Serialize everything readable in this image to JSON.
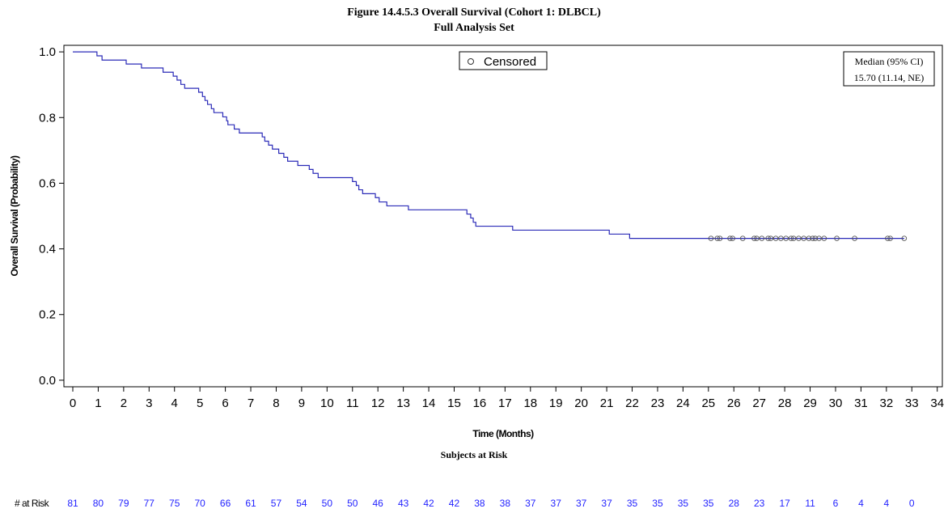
{
  "title": {
    "line1": "Figure 14.4.5.3  Overall Survival (Cohort 1: DLBCL)",
    "line2": "Full Analysis Set"
  },
  "legend": {
    "censored_label": "Censored"
  },
  "median_box": {
    "header": "Median (95% CI)",
    "value": "15.70 (11.14, NE)"
  },
  "colors": {
    "series": "#2b2bb8",
    "risk_values": "#2222ff",
    "axis": "#000000"
  },
  "risk_table": {
    "header": "Subjects at Risk",
    "row_label": "# at Risk",
    "times": [
      0,
      1,
      2,
      3,
      4,
      5,
      6,
      7,
      8,
      9,
      10,
      11,
      12,
      13,
      14,
      15,
      16,
      17,
      18,
      19,
      20,
      21,
      22,
      23,
      24,
      25,
      26,
      27,
      28,
      29,
      30,
      31,
      32,
      33
    ],
    "values": [
      81,
      80,
      79,
      77,
      75,
      70,
      66,
      61,
      57,
      54,
      50,
      50,
      46,
      43,
      42,
      42,
      38,
      38,
      37,
      37,
      37,
      37,
      35,
      35,
      35,
      35,
      28,
      23,
      17,
      11,
      6,
      4,
      4,
      0
    ]
  },
  "chart_data": {
    "type": "line",
    "subtype": "kaplan-meier-step",
    "xlabel": "Time (Months)",
    "ylabel": "Overall Survival (Probability)",
    "xlim": [
      -0.35,
      34.2
    ],
    "ylim": [
      -0.02,
      1.02
    ],
    "xticks": [
      0,
      1,
      2,
      3,
      4,
      5,
      6,
      7,
      8,
      9,
      10,
      11,
      12,
      13,
      14,
      15,
      16,
      17,
      18,
      19,
      20,
      21,
      22,
      23,
      24,
      25,
      26,
      27,
      28,
      29,
      30,
      31,
      32,
      33,
      34
    ],
    "yticks": [
      0.0,
      0.2,
      0.4,
      0.6,
      0.8,
      1.0
    ],
    "ytick_labels": [
      "0.0",
      "0.2",
      "0.4",
      "0.6",
      "0.8",
      "1.0"
    ],
    "grid": false,
    "legend_position": "top-center",
    "series": [
      {
        "x": [
          0,
          0.95,
          1.1,
          1.15,
          2.1,
          2.7,
          3.55,
          3.95,
          4.1,
          4.25,
          4.4,
          4.95,
          5.1,
          5.2,
          5.3,
          5.45,
          5.55,
          5.9,
          6.05,
          6.1,
          6.35,
          6.55,
          7.45,
          7.55,
          7.7,
          7.85,
          8.1,
          8.3,
          8.45,
          8.85,
          9.3,
          9.45,
          9.65,
          10.15,
          10.2,
          10.45,
          10.7,
          11,
          11.15,
          11.25,
          11.4,
          11.5,
          11.9,
          12.05,
          12.1,
          12.35,
          12.6,
          13.2,
          13.35,
          15.5,
          15.65,
          15.75,
          15.85,
          16.05,
          17.3,
          21.1,
          21.9,
          22,
          32.7
        ],
        "y": [
          1.0,
          0.988,
          0.988,
          0.975,
          0.963,
          0.951,
          0.938,
          0.926,
          0.914,
          0.901,
          0.889,
          0.877,
          0.864,
          0.852,
          0.84,
          0.827,
          0.815,
          0.802,
          0.79,
          0.778,
          0.765,
          0.753,
          0.741,
          0.728,
          0.716,
          0.704,
          0.691,
          0.679,
          0.667,
          0.654,
          0.642,
          0.63,
          0.617,
          0.617,
          0.617,
          0.617,
          0.617,
          0.605,
          0.593,
          0.58,
          0.568,
          0.568,
          0.556,
          0.543,
          0.543,
          0.531,
          0.531,
          0.519,
          0.519,
          0.506,
          0.494,
          0.481,
          0.469,
          0.469,
          0.457,
          0.445,
          0.432,
          0.432,
          0.432
        ]
      }
    ],
    "censored": {
      "x": [
        25.1,
        25.35,
        25.45,
        25.85,
        25.95,
        26.35,
        26.8,
        26.9,
        27.1,
        27.35,
        27.45,
        27.65,
        27.85,
        28.05,
        28.25,
        28.35,
        28.55,
        28.75,
        28.95,
        29.1,
        29.2,
        29.35,
        29.55,
        30.05,
        30.75,
        32.05,
        32.15,
        32.7
      ],
      "y": [
        0.432,
        0.432,
        0.432,
        0.432,
        0.432,
        0.432,
        0.432,
        0.432,
        0.432,
        0.432,
        0.432,
        0.432,
        0.432,
        0.432,
        0.432,
        0.432,
        0.432,
        0.432,
        0.432,
        0.432,
        0.432,
        0.432,
        0.432,
        0.432,
        0.432,
        0.432,
        0.432,
        0.432
      ]
    }
  }
}
